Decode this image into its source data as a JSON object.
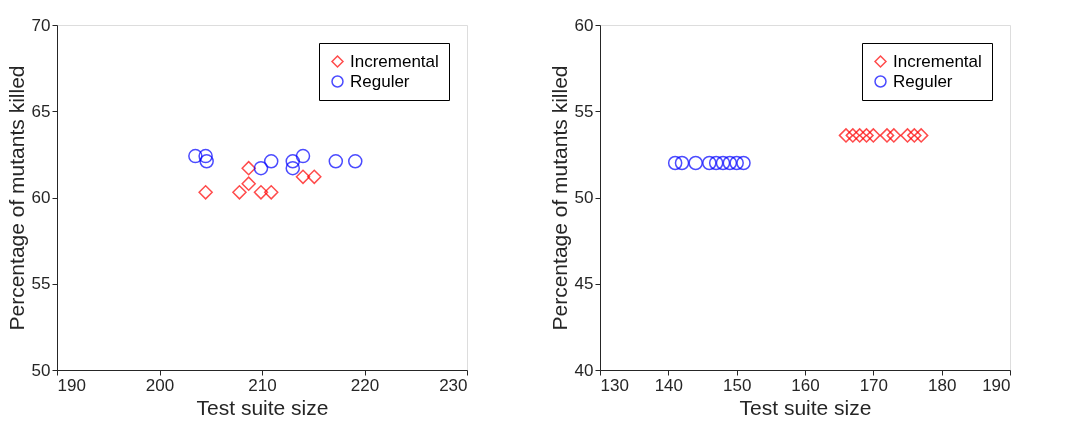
{
  "chart_data": [
    {
      "type": "scatter",
      "xlabel": "Test suite size",
      "ylabel": "Percentage of mutants killed",
      "xlim": [
        190,
        230
      ],
      "xticks": [
        190,
        200,
        210,
        220,
        230
      ],
      "ylim": [
        50,
        70
      ],
      "yticks": [
        50,
        55,
        60,
        65,
        70
      ],
      "grid": false,
      "legend": "top right",
      "series": [
        {
          "name": "Incremental",
          "color": "#ff0000",
          "marker": "diamond",
          "x": [
            204.5,
            207.8,
            208.7,
            208.7,
            209.9,
            210.9,
            214,
            215.1
          ],
          "values": [
            60.3,
            60.3,
            61.7,
            60.8,
            60.3,
            60.3,
            61.2,
            61.2
          ]
        },
        {
          "name": "Reguler",
          "color": "#0000ff",
          "marker": "circle",
          "x": [
            203.5,
            204.5,
            204.6,
            209.9,
            210.9,
            213,
            213,
            214,
            217.2,
            219.1
          ],
          "values": [
            62.4,
            62.4,
            62.1,
            61.7,
            62.1,
            62.1,
            61.7,
            62.4,
            62.1,
            62.1
          ]
        }
      ]
    },
    {
      "type": "scatter",
      "xlabel": "Test suite size",
      "ylabel": "Percentage of mutants killed",
      "xlim": [
        130,
        190
      ],
      "xticks": [
        130,
        140,
        150,
        160,
        170,
        180,
        190
      ],
      "ylim": [
        40,
        60
      ],
      "yticks": [
        40,
        45,
        50,
        55,
        60
      ],
      "grid": false,
      "legend": "top right",
      "series": [
        {
          "name": "Incremental",
          "color": "#ff0000",
          "marker": "diamond",
          "x": [
            166,
            167,
            168,
            169,
            170,
            172,
            173,
            175,
            176,
            177
          ],
          "values": [
            53.6,
            53.6,
            53.6,
            53.6,
            53.6,
            53.6,
            53.6,
            53.6,
            53.6,
            53.6
          ]
        },
        {
          "name": "Reguler",
          "color": "#0000ff",
          "marker": "circle",
          "x": [
            141,
            142,
            144,
            146,
            147,
            148,
            149,
            150,
            151
          ],
          "values": [
            52,
            52,
            52,
            52,
            52,
            52,
            52,
            52,
            52
          ]
        }
      ]
    }
  ]
}
